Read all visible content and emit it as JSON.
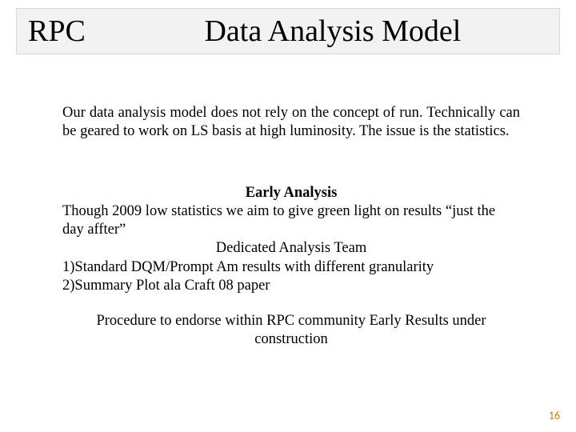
{
  "colors": {
    "background": "#ffffff",
    "title_bar_bg": "#f2f2f2",
    "title_bar_border": "#d9d9d9",
    "text": "#000000",
    "page_number": "#b8860b"
  },
  "fonts": {
    "title_size_pt": 38,
    "body_size_pt": 18.5,
    "page_number_size_pt": 14,
    "family": "Times New Roman"
  },
  "title": {
    "left": "RPC",
    "right": "Data Analysis Model"
  },
  "body": {
    "intro": "Our data analysis model does not rely on the concept of run. Technically can be geared to work on LS basis at high luminosity. The issue is the statistics.",
    "early_heading": "Early Analysis",
    "early_line1": "Though 2009 low statistics we aim  to give green light on results “just the day affter”",
    "team_heading": "Dedicated Analysis Team",
    "item1": "1)Standard DQM/Prompt Am results with different granularity",
    "item2": "2)Summary Plot ala Craft 08 paper",
    "procedure": "Procedure to endorse within RPC community Early Results under construction"
  },
  "page_number": "16"
}
